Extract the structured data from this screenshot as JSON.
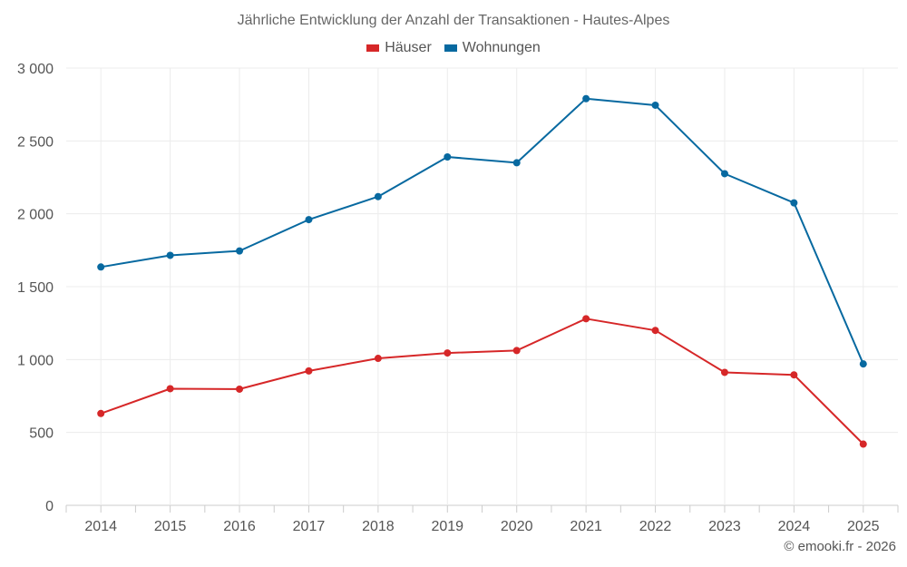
{
  "chart_data": {
    "type": "line",
    "title": "Jährliche Entwicklung der Anzahl der Transaktionen - Hautes-Alpes",
    "x": [
      "2014",
      "2015",
      "2016",
      "2017",
      "2018",
      "2019",
      "2020",
      "2021",
      "2022",
      "2023",
      "2024",
      "2025"
    ],
    "series": [
      {
        "name": "Häuser",
        "color": "#d62728",
        "values": [
          630,
          800,
          797,
          922,
          1008,
          1045,
          1062,
          1280,
          1200,
          912,
          895,
          420
        ]
      },
      {
        "name": "Wohnungen",
        "color": "#0769a0",
        "values": [
          1635,
          1715,
          1745,
          1960,
          2118,
          2390,
          2350,
          2790,
          2745,
          2275,
          2075,
          970
        ]
      }
    ],
    "ylim": [
      0,
      3000
    ],
    "yticks": [
      0,
      500,
      1000,
      1500,
      2000,
      2500,
      3000
    ],
    "ytick_labels": [
      "0",
      "500",
      "1 000",
      "1 500",
      "2 000",
      "2 500",
      "3 000"
    ],
    "grid": true,
    "legend_position": "top-center"
  },
  "credit": "© emooki.fr - 2026"
}
